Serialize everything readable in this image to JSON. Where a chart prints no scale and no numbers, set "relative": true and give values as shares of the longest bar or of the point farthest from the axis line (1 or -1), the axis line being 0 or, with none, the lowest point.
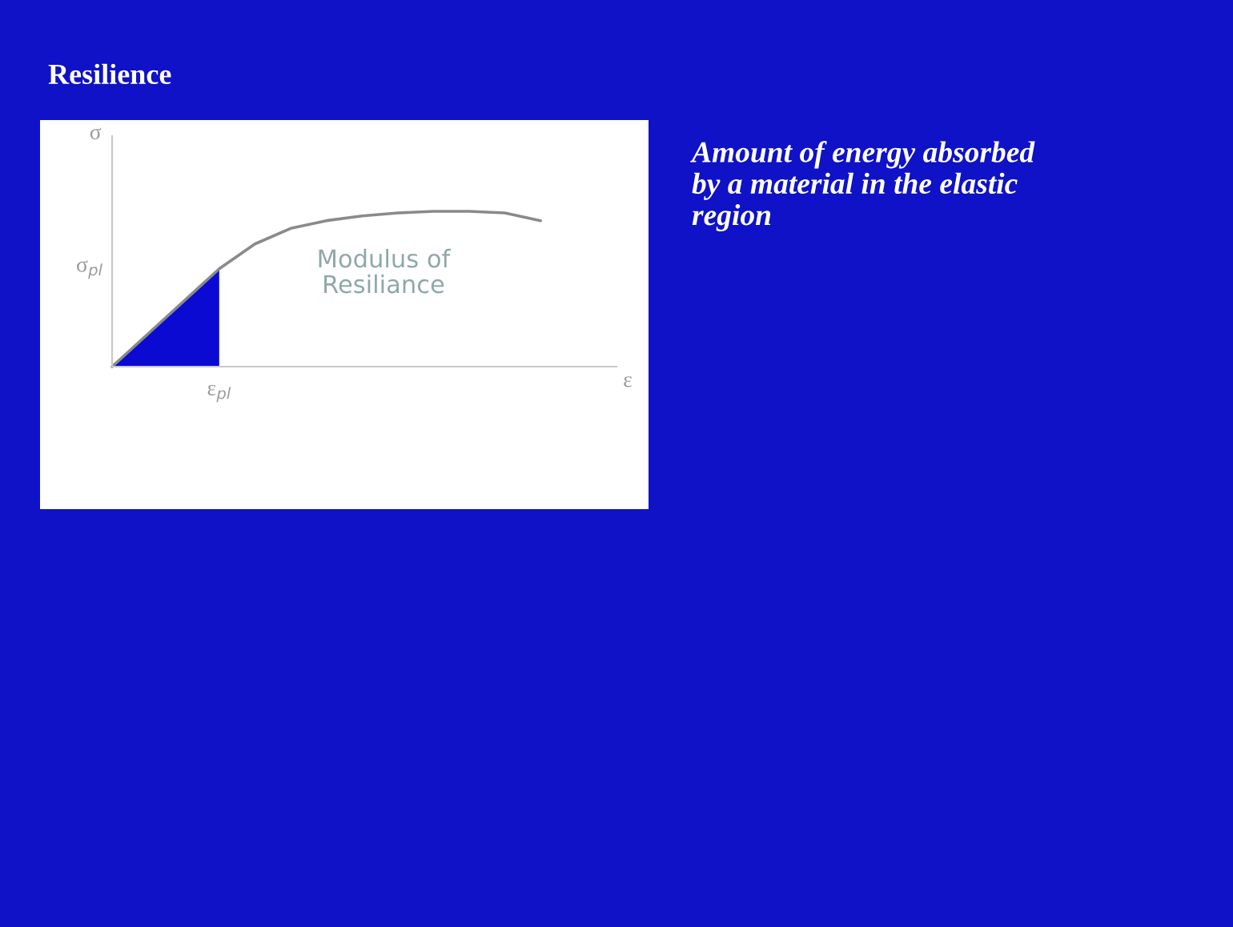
{
  "chart_data": {
    "type": "line",
    "title": "Resilience",
    "relative": true,
    "xlabel": "ε",
    "ylabel": "σ",
    "categories": [
      null,
      null,
      null,
      null,
      null,
      null,
      null,
      null,
      null,
      null,
      null,
      null,
      null
    ],
    "series": [
      {
        "color": "#8a8a8a",
        "values": [
          0,
          0.21,
          0.42,
          0.63,
          0.79,
          0.89,
          0.94,
          0.97,
          0.99,
          1.0,
          1.0,
          0.99,
          0.94
        ]
      },
      {
        "type": "area",
        "color": "#0a0ad2",
        "values": [
          0,
          0.21,
          0.42,
          0.63,
          null,
          null,
          null,
          null,
          null,
          null,
          null,
          null,
          null
        ]
      }
    ],
    "annotations": [
      "σ$_{pl}$",
      "ε$_{pl}$",
      "Modulus of\nResiliance",
      "Amount of energy absorbed\nby a material in the elastic\nregion"
    ],
    "legend": false
  }
}
